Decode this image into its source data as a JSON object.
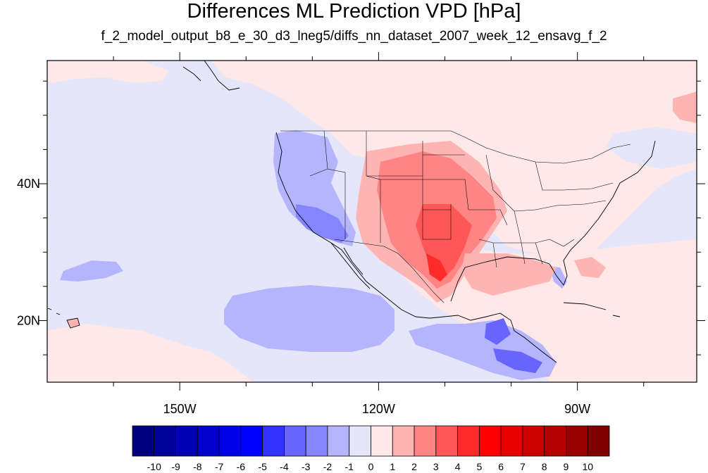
{
  "title": "Differences ML Prediction VPD [hPa]",
  "subtitle": "f_2_model_output_b8_e_30_d3_lneg5/diffs_nn_dataset_2007_week_12_ensavg_f_2",
  "map": {
    "projection": "cylindrical-equidistant",
    "lon_range": [
      -170,
      -72
    ],
    "lat_range": [
      11,
      58
    ],
    "lon_ticks": [
      {
        "lon": -150,
        "label": "150W"
      },
      {
        "lon": -120,
        "label": "120W"
      },
      {
        "lon": -90,
        "label": "90W"
      }
    ],
    "lat_ticks": [
      {
        "lat": 40,
        "label": "40N"
      },
      {
        "lat": 20,
        "label": "20N"
      }
    ],
    "background_color": "#e6e6fa",
    "border_color": "#000000"
  },
  "colorbar": {
    "colors": [
      "#00007f",
      "#00009a",
      "#0000b4",
      "#0000cd",
      "#0000e6",
      "#0000ff",
      "#3333ff",
      "#6666ff",
      "#8585ff",
      "#b4b4ff",
      "#e6e6fa",
      "#ffe8e8",
      "#ffb4b4",
      "#ff8585",
      "#ff5757",
      "#ff2b2b",
      "#ff0000",
      "#e60000",
      "#cd0000",
      "#b40000",
      "#9a0000",
      "#7f0000"
    ],
    "labels": [
      "-10",
      "-9",
      "-8",
      "-7",
      "-6",
      "-5",
      "-4",
      "-3",
      "-2",
      "-1",
      "0",
      "1",
      "2",
      "3",
      "4",
      "5",
      "6",
      "7",
      "8",
      "9",
      "10"
    ]
  }
}
